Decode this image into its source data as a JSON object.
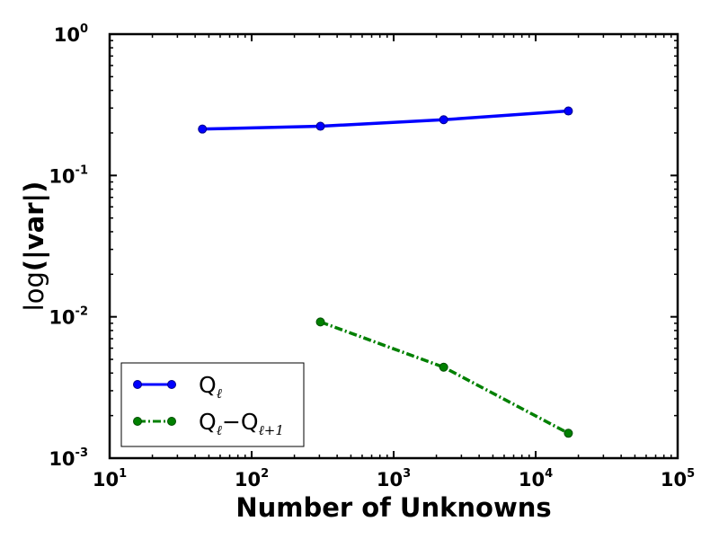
{
  "chart_data": {
    "type": "line",
    "xscale": "log",
    "yscale": "log",
    "xlim": [
      10,
      100000
    ],
    "ylim": [
      0.001,
      1
    ],
    "xlabel": "Number of Unknowns",
    "ylabel_prefix": "log",
    "ylabel_main": "(|var|)",
    "x_ticks": [
      {
        "base": "10",
        "exp": "1",
        "value": 10
      },
      {
        "base": "10",
        "exp": "2",
        "value": 100
      },
      {
        "base": "10",
        "exp": "3",
        "value": 1000
      },
      {
        "base": "10",
        "exp": "4",
        "value": 10000
      },
      {
        "base": "10",
        "exp": "5",
        "value": 100000
      }
    ],
    "y_ticks": [
      {
        "base": "10",
        "exp": "-3",
        "value": 0.001
      },
      {
        "base": "10",
        "exp": "-2",
        "value": 0.01
      },
      {
        "base": "10",
        "exp": "-1",
        "value": 0.1
      },
      {
        "base": "10",
        "exp": "0",
        "value": 1
      }
    ],
    "series": [
      {
        "name": "Q_ℓ",
        "legend_main": "Q",
        "legend_sub": "ℓ",
        "color": "#0000ff",
        "line_style": "solid",
        "x": [
          45,
          305,
          2250,
          17000
        ],
        "y": [
          0.213,
          0.223,
          0.248,
          0.286
        ]
      },
      {
        "name": "Q_ℓ−Q_ℓ+1",
        "legend_main": "Q",
        "legend_sub": "ℓ",
        "legend_mid": "−Q",
        "legend_sub2": "ℓ+1",
        "color": "#008000",
        "line_style": "dashdot",
        "x": [
          305,
          2250,
          17000
        ],
        "y": [
          0.0092,
          0.0044,
          0.0015
        ]
      }
    ],
    "legend": {
      "location": "lower-left",
      "frame": true
    },
    "grid": false,
    "ticks_direction": "in"
  }
}
